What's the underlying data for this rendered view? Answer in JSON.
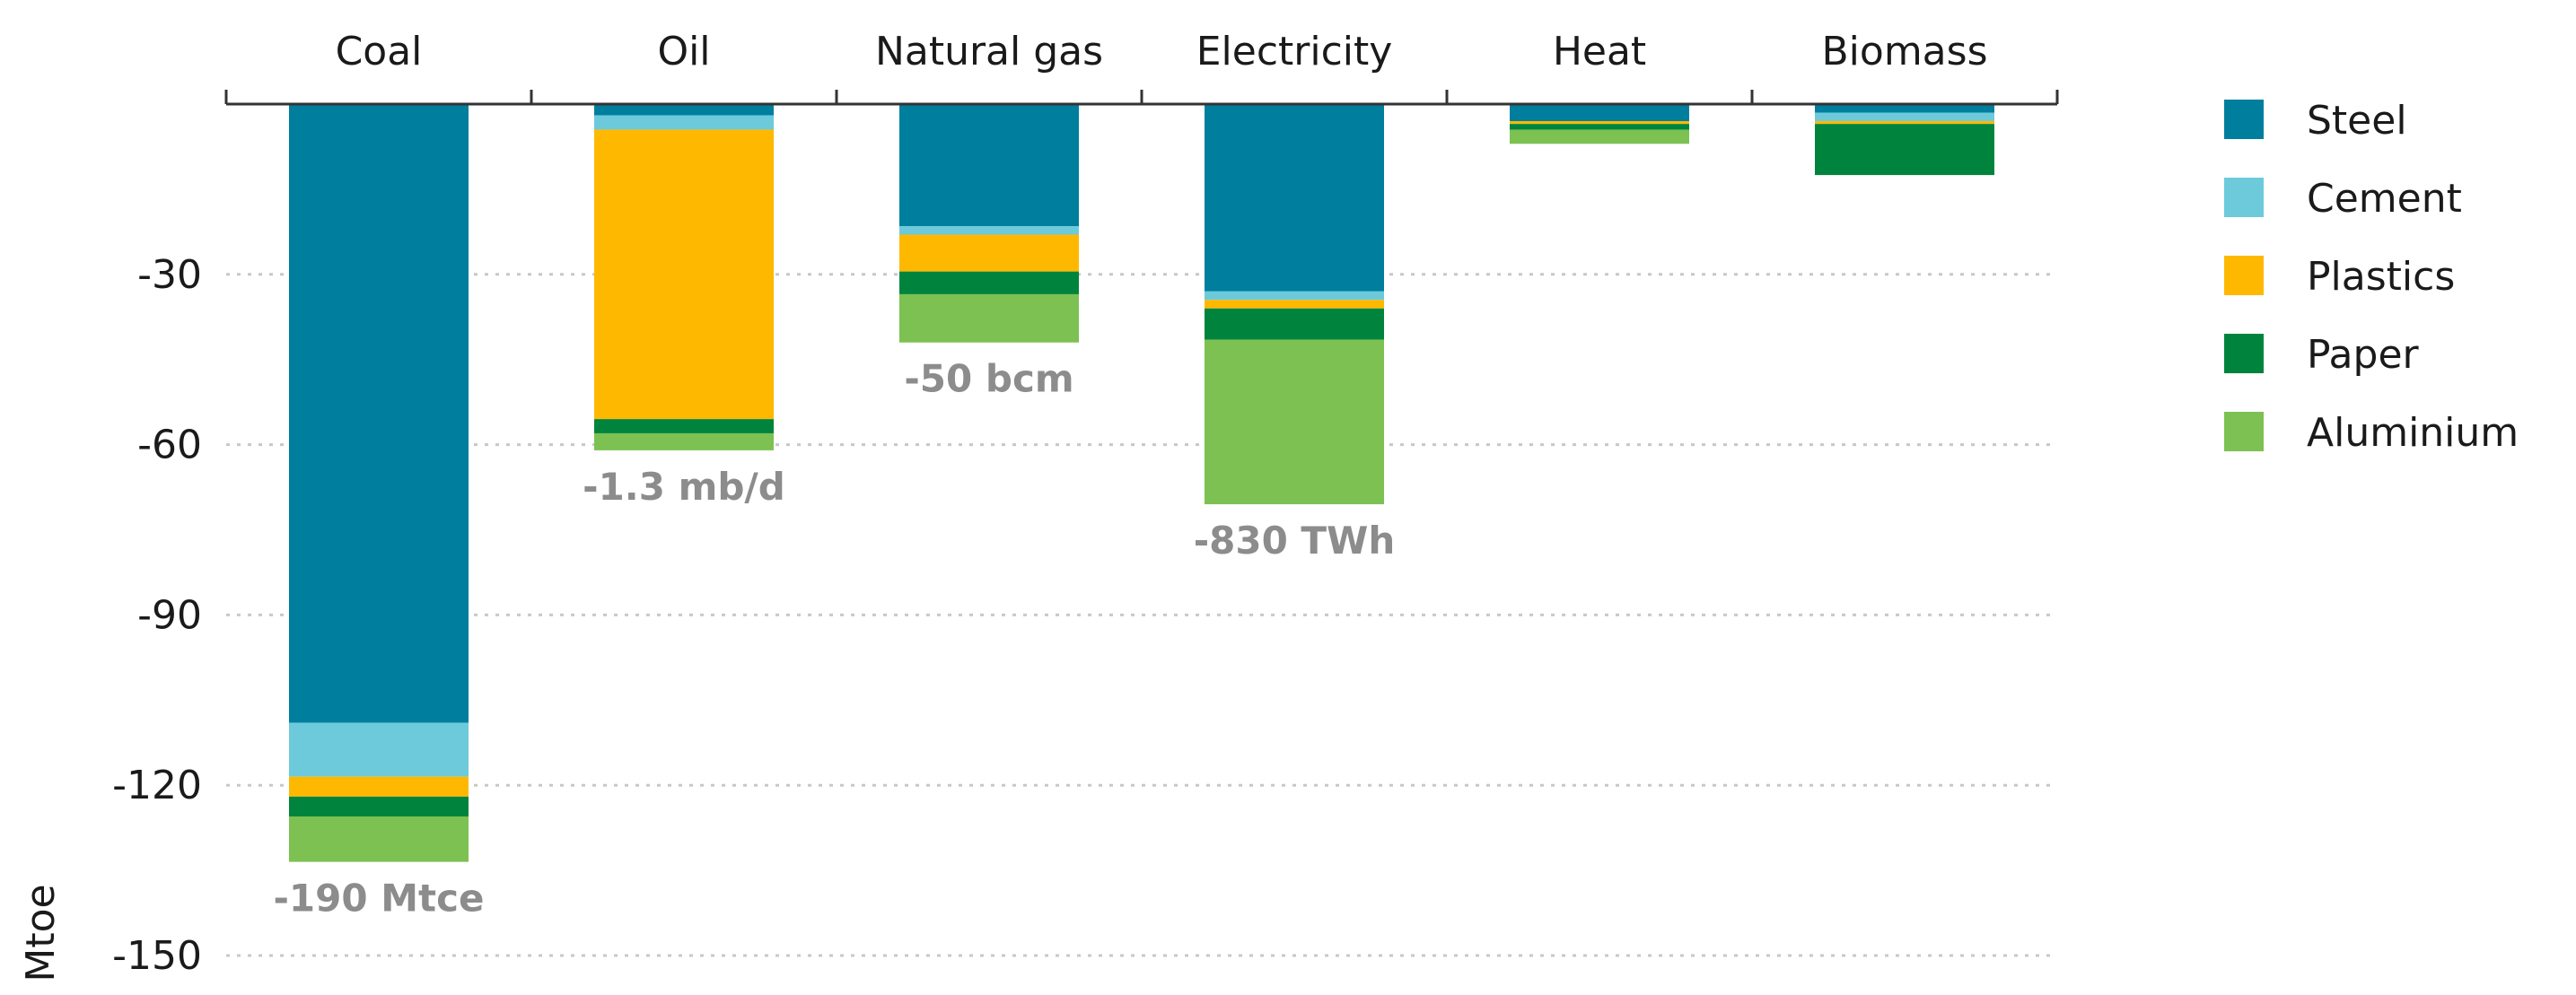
{
  "chart_data": {
    "type": "bar",
    "stacked": true,
    "title": "",
    "xlabel": "",
    "ylabel": "Mtoe",
    "ylim": [
      -150,
      0
    ],
    "yticks": [
      -30,
      -60,
      -90,
      -120,
      -150
    ],
    "grid": true,
    "legend_position": "right",
    "categories": [
      "Coal",
      "Oil",
      "Natural gas",
      "Electricity",
      "Heat",
      "Biomass"
    ],
    "series": [
      {
        "name": "Steel",
        "color": "#007E9E",
        "values": [
          -109,
          -2,
          -21.5,
          -33,
          -3,
          -1.5
        ]
      },
      {
        "name": "Cement",
        "color": "#6CCADB",
        "values": [
          -9.5,
          -2.5,
          -1.5,
          -1.5,
          0,
          -1.5
        ]
      },
      {
        "name": "Plastics",
        "color": "#FFB800",
        "values": [
          -3.5,
          -51,
          -6.5,
          -1.5,
          -0.5,
          -0.5
        ]
      },
      {
        "name": "Paper",
        "color": "#00843D",
        "values": [
          -3.5,
          -2.5,
          -4,
          -5.5,
          -1,
          -9
        ]
      },
      {
        "name": "Aluminium",
        "color": "#7CC152",
        "values": [
          -8,
          -3,
          -8.5,
          -29,
          -2.5,
          0
        ]
      }
    ],
    "annotations": [
      "-190 Mtce",
      "-1.3 mb/d",
      "-50 bcm",
      "-830 TWh",
      "",
      ""
    ]
  }
}
